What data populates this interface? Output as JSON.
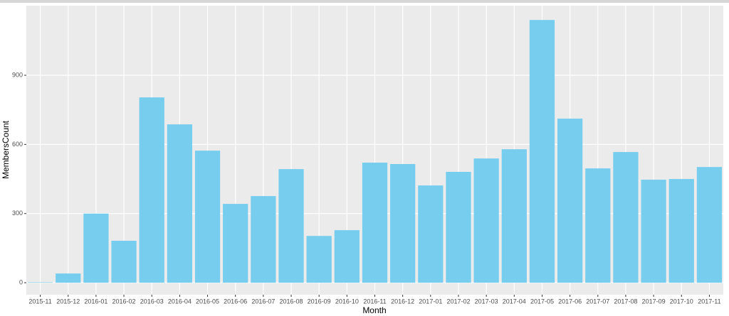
{
  "chart_data": {
    "type": "bar",
    "x_label": "Month",
    "y_label": "MembersCount",
    "categories": [
      "2015-11",
      "2015-12",
      "2016-01",
      "2016-02",
      "2016-03",
      "2016-04",
      "2016-05",
      "2016-06",
      "2016-07",
      "2016-08",
      "2016-09",
      "2016-10",
      "2016-11",
      "2016-12",
      "2017-01",
      "2017-02",
      "2017-03",
      "2017-04",
      "2017-05",
      "2017-06",
      "2017-07",
      "2017-08",
      "2017-09",
      "2017-10",
      "2017-11"
    ],
    "values": [
      2,
      40,
      300,
      182,
      804,
      687,
      573,
      342,
      376,
      493,
      203,
      228,
      521,
      515,
      422,
      481,
      539,
      579,
      1140,
      712,
      496,
      567,
      447,
      450,
      502
    ],
    "color": "#77cdee",
    "ylim": [
      -52,
      1202
    ],
    "yticks": [
      0,
      300,
      600,
      900
    ],
    "grid": true
  }
}
